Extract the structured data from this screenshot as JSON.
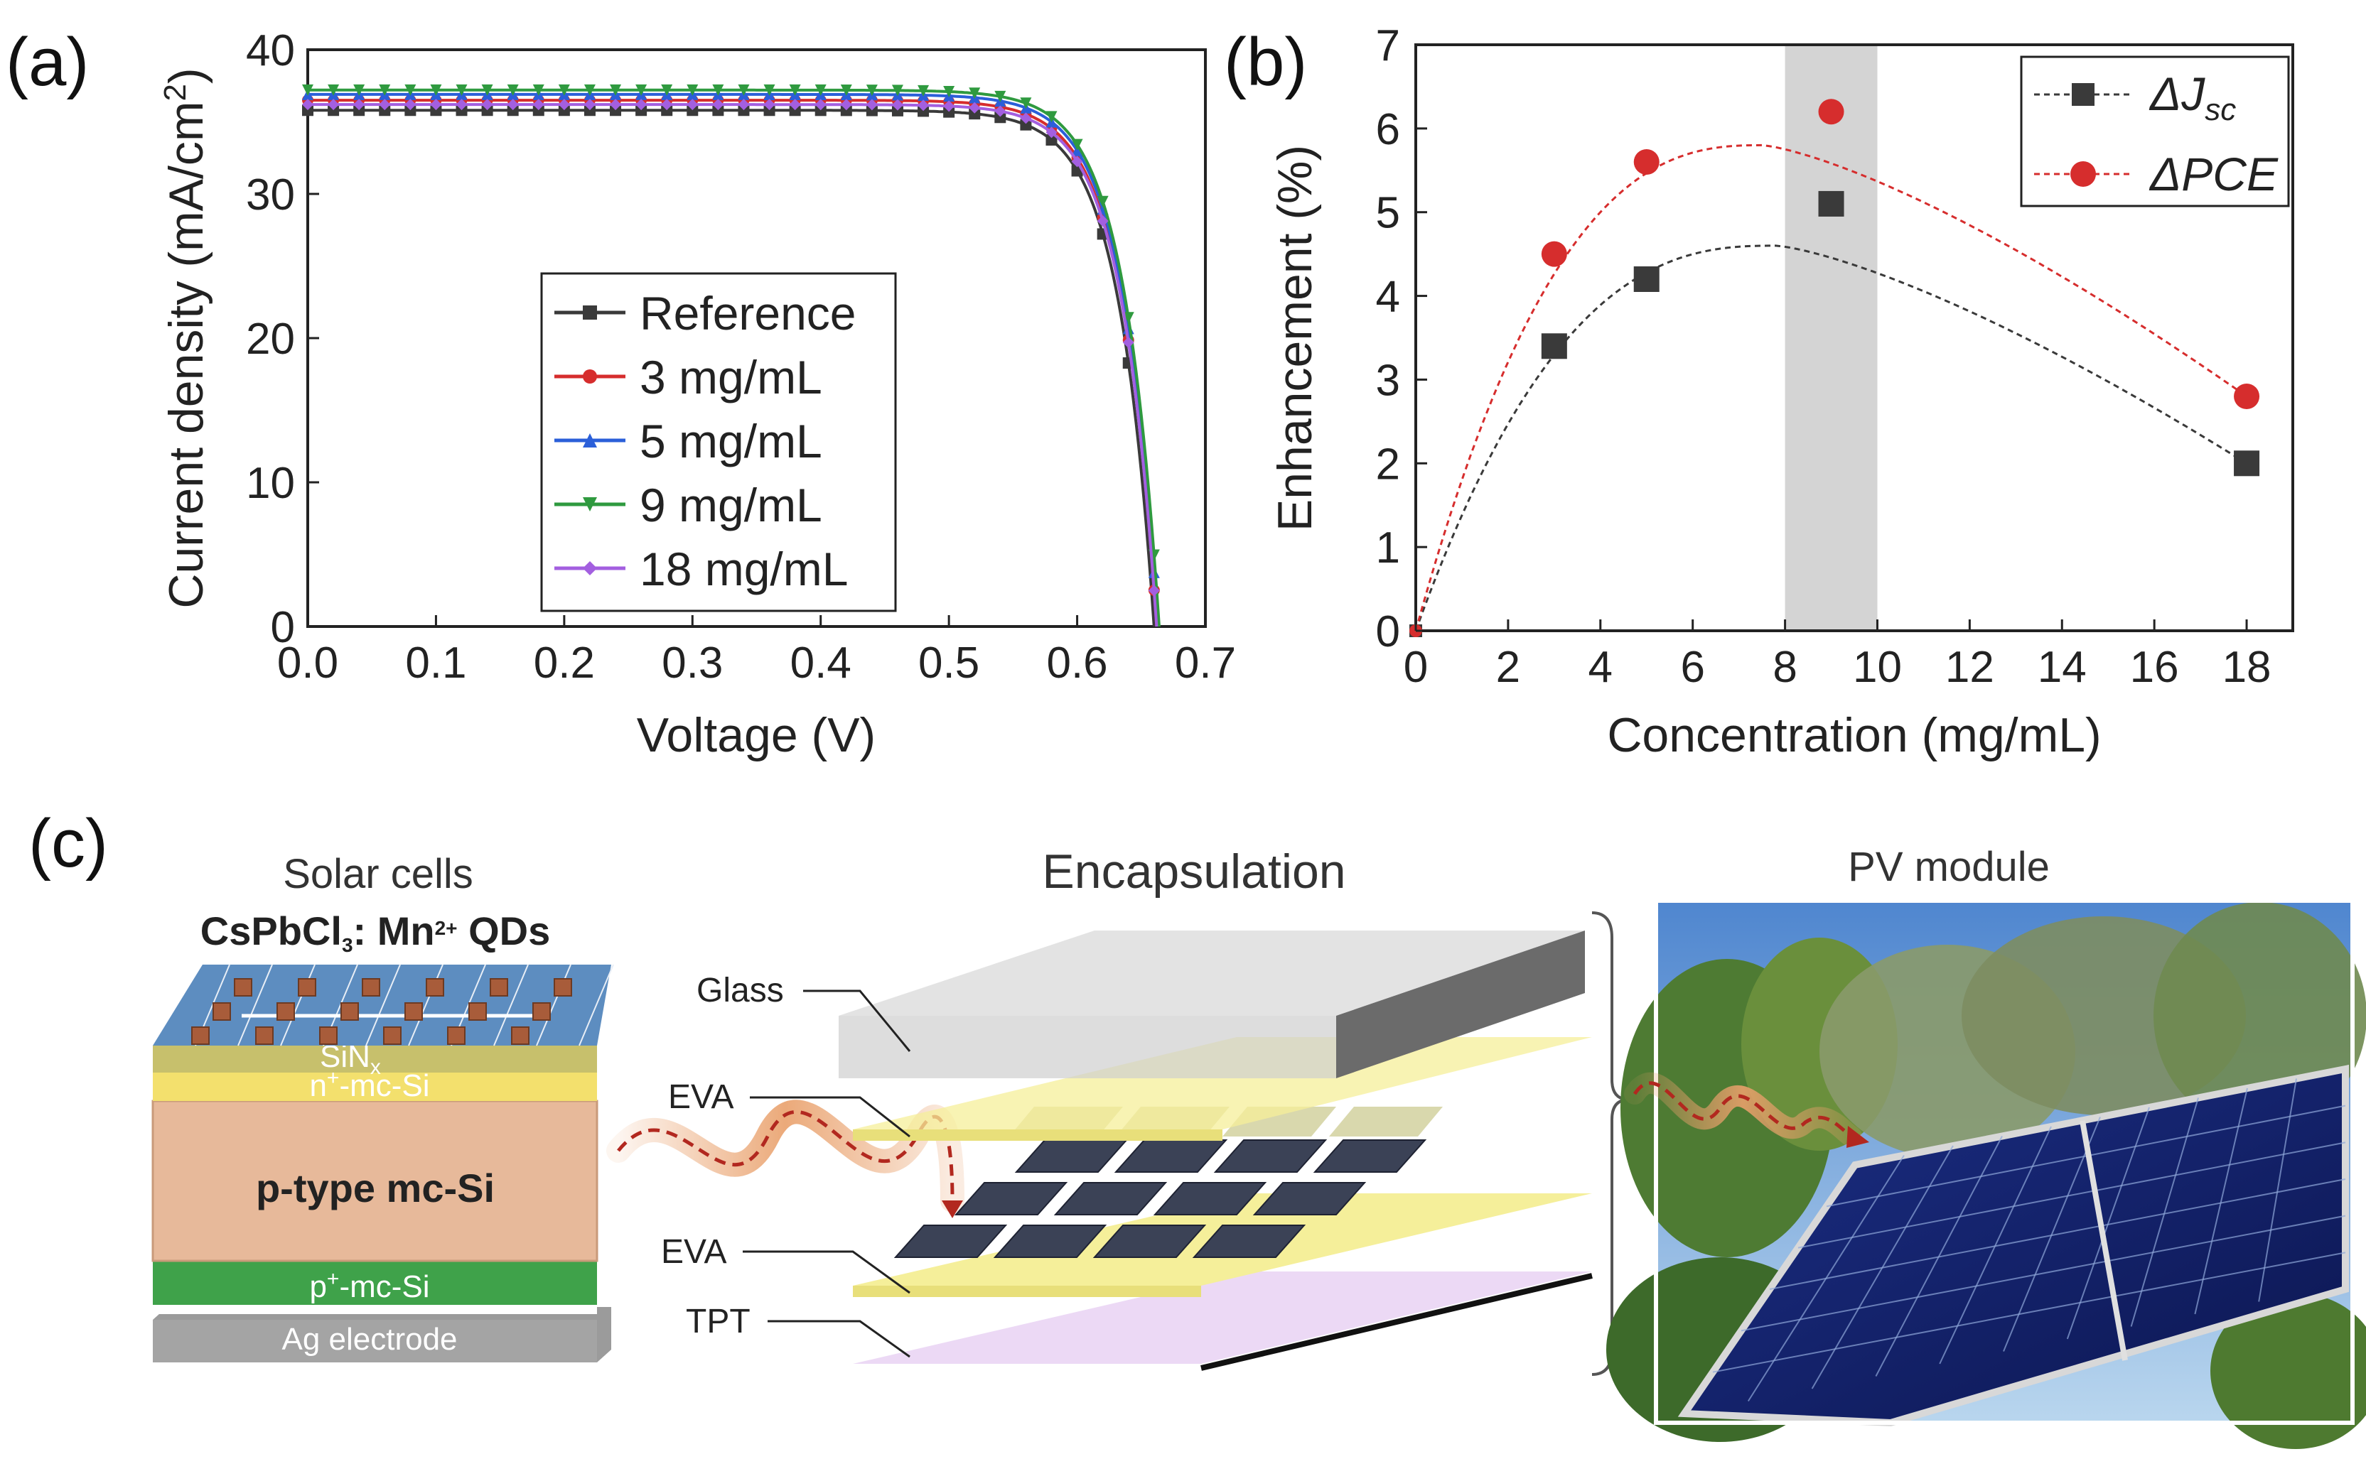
{
  "panel_labels": {
    "a": "(a)",
    "b": "(b)",
    "c": "(c)"
  },
  "chart_data": [
    {
      "type": "line",
      "panel": "(a)",
      "title": "",
      "xlabel": "Voltage (V)",
      "ylabel_main": "Current density (mA/cm",
      "ylabel_sup": "2",
      "ylabel_end": ")",
      "xlim": [
        0,
        0.7
      ],
      "ylim": [
        0,
        40
      ],
      "xticks": [
        "0.0",
        "0.1",
        "0.2",
        "0.3",
        "0.4",
        "0.5",
        "0.6",
        "0.7"
      ],
      "yticks": [
        "0",
        "10",
        "20",
        "30",
        "40"
      ],
      "legend_position": "bottom-center",
      "series": [
        {
          "name": "Reference",
          "color": "#3a3a3a",
          "marker": "square",
          "jsc": 35.8,
          "voc": 0.66
        },
        {
          "name": "3 mg/mL",
          "color": "#d62d2d",
          "marker": "circle",
          "jsc": 36.5,
          "voc": 0.662
        },
        {
          "name": "5 mg/mL",
          "color": "#2b5fd9",
          "marker": "triangle-up",
          "jsc": 36.9,
          "voc": 0.663
        },
        {
          "name": "9 mg/mL",
          "color": "#2f9a3f",
          "marker": "triangle-down",
          "jsc": 37.2,
          "voc": 0.664
        },
        {
          "name": "18 mg/mL",
          "color": "#a35fe0",
          "marker": "diamond",
          "jsc": 36.2,
          "voc": 0.662
        }
      ]
    },
    {
      "type": "scatter",
      "panel": "(b)",
      "title": "",
      "xlabel": "Concentration (mg/mL)",
      "ylabel": "Enhancement (%)",
      "xlim": [
        0,
        19
      ],
      "ylim": [
        0,
        7
      ],
      "xticks": [
        "0",
        "2",
        "4",
        "6",
        "8",
        "10",
        "12",
        "14",
        "16",
        "18"
      ],
      "yticks": [
        "0",
        "1",
        "2",
        "3",
        "4",
        "5",
        "6",
        "7"
      ],
      "highlight_band": [
        8,
        10
      ],
      "legend_position": "top-right",
      "series": [
        {
          "name": "ΔJ",
          "name_sub": "sc",
          "color": "#3a3a3a",
          "marker": "square",
          "x": [
            0,
            3,
            5,
            9,
            18
          ],
          "y": [
            0,
            3.4,
            4.2,
            5.1,
            2.0
          ],
          "fit_peak": [
            7.8,
            4.6
          ]
        },
        {
          "name": "ΔPCE",
          "name_sub": "",
          "color": "#d62d2d",
          "marker": "circle",
          "x": [
            0,
            3,
            5,
            9,
            18
          ],
          "y": [
            0,
            4.5,
            5.6,
            6.2,
            2.8
          ],
          "fit_peak": [
            7.5,
            5.8
          ]
        }
      ]
    }
  ],
  "panel_c": {
    "solar_cells": {
      "title": "Solar cells",
      "qd_label_main": "CsPbCl",
      "qd_label_sub": "3",
      "qd_label_mid": ": Mn",
      "qd_label_sup": "2+",
      "qd_label_end": " QDs",
      "layers": {
        "sinx_main": "SiN",
        "sinx_sub": "x",
        "n_main": "n",
        "n_sup": "+",
        "n_end": "-mc-Si",
        "p_type": "p-type mc-Si",
        "p_main": "p",
        "p_sup": "+",
        "p_end": "-mc-Si",
        "ag": "Ag electrode"
      }
    },
    "encapsulation": {
      "title": "Encapsulation",
      "labels": [
        "Glass",
        "EVA",
        "EVA",
        "TPT"
      ]
    },
    "pv_module": {
      "title": "PV module"
    }
  },
  "colors": {
    "ref": "#3a3a3a",
    "c3": "#d62d2d",
    "c5": "#2b5fd9",
    "c9": "#2f9a3f",
    "c18": "#a35fe0",
    "band": "#d4d4d4",
    "eva": "#f5ef9a",
    "glass": "#d9d9d9",
    "tpt": "#ecd9f5",
    "cell": "#3b4256"
  }
}
